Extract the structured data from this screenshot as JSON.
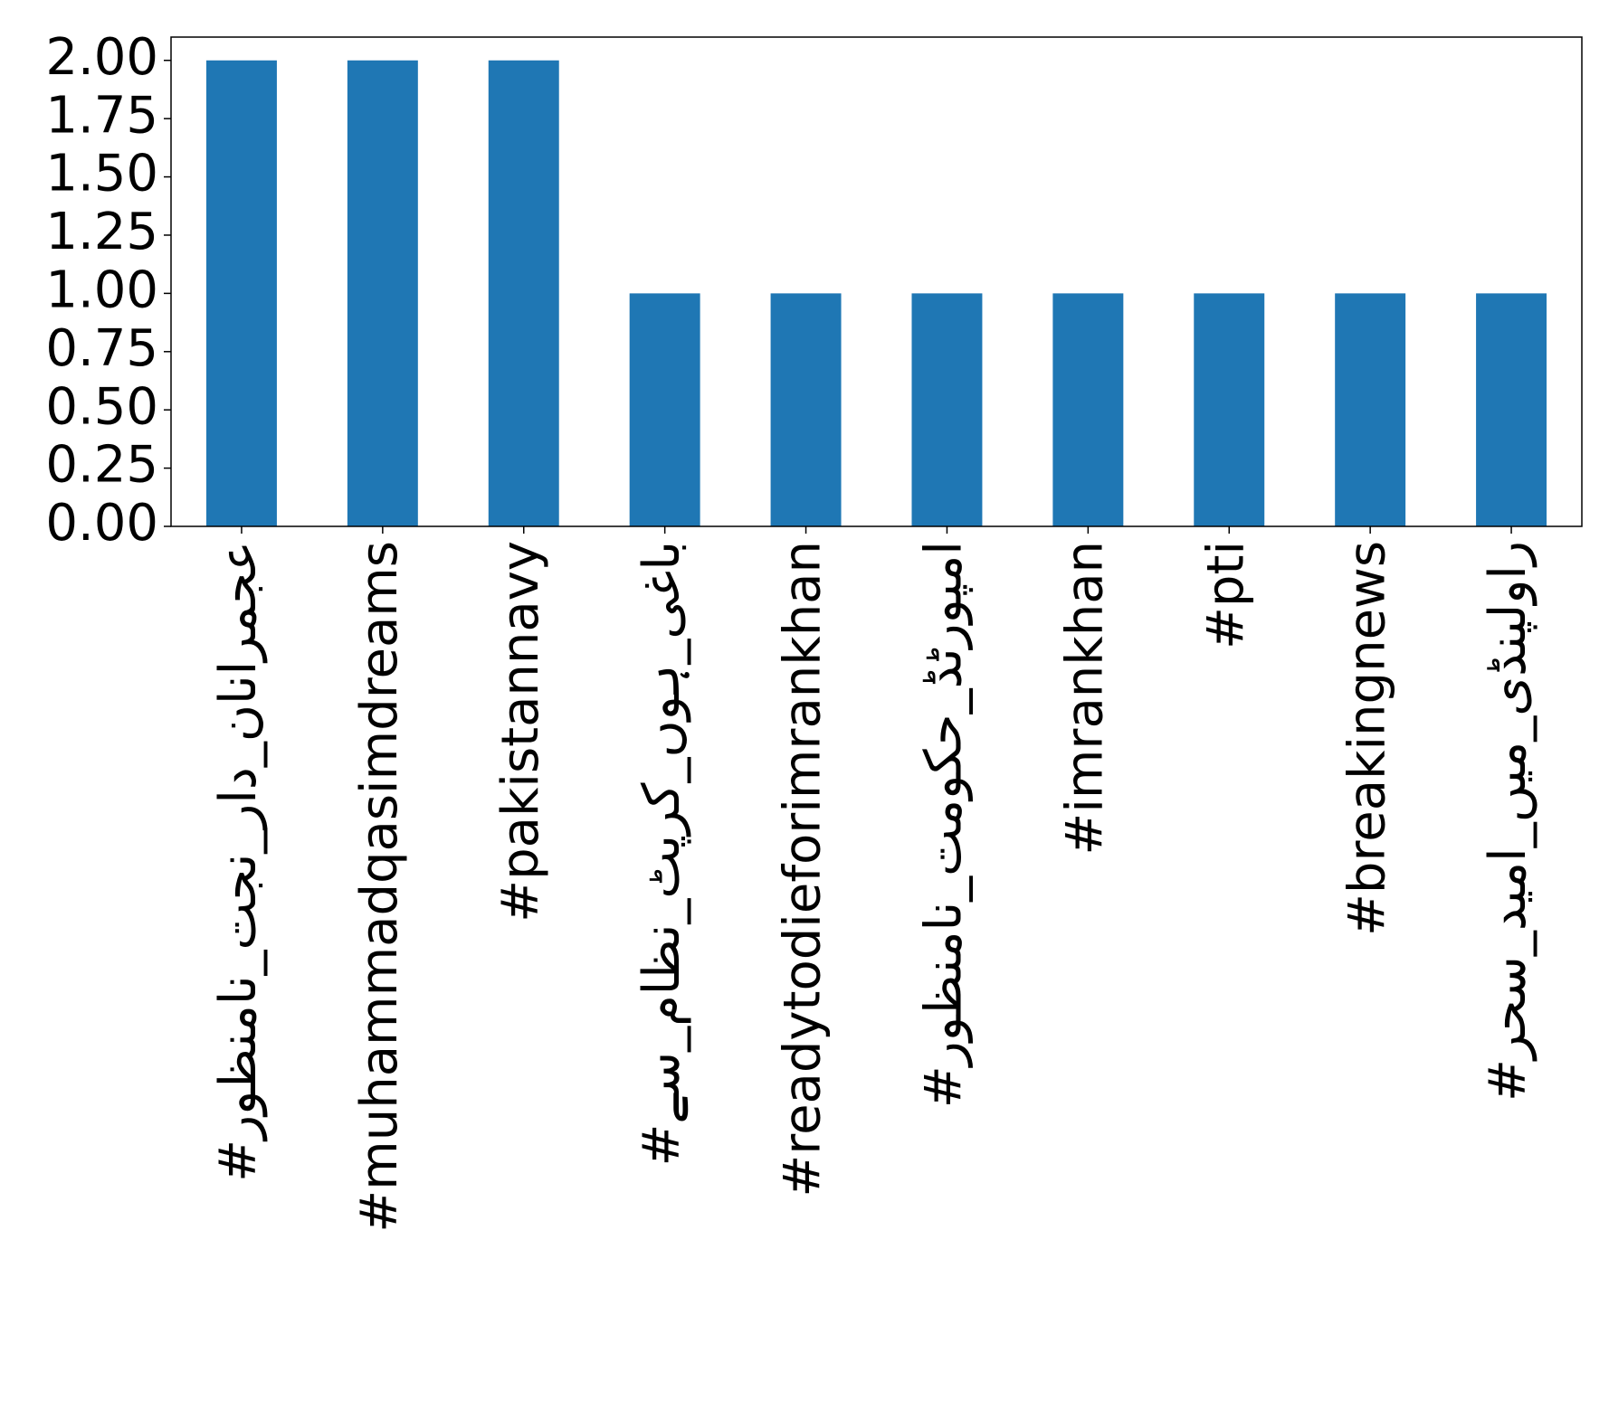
{
  "chart_data": {
    "type": "bar",
    "categories": [
      "#عجمرانان_دار_نجت_نامنظور",
      "#muhammadqasimdreams",
      "#pakistannavy",
      "#باغی_ہوں_کرپٹ_نظام_سے",
      "#readytodieforimrankhan",
      "#امپورٹڈ_حکومت_نامنظور",
      "#imrankhan",
      "#pti",
      "#breakingnews",
      "#راولپنڈی_میں_امید_سحر"
    ],
    "values": [
      2,
      2,
      2,
      1,
      1,
      1,
      1,
      1,
      1,
      1
    ],
    "color": "#1f77b4",
    "ylim": [
      0,
      2.1
    ],
    "yticks": [
      {
        "value": 0,
        "label": "0.00"
      },
      {
        "value": 0.25,
        "label": "0.25"
      },
      {
        "value": 0.5,
        "label": "0.50"
      },
      {
        "value": 0.75,
        "label": "0.75"
      },
      {
        "value": 1,
        "label": "1.00"
      },
      {
        "value": 1.25,
        "label": "1.25"
      },
      {
        "value": 1.5,
        "label": "1.50"
      },
      {
        "value": 1.75,
        "label": "1.75"
      },
      {
        "value": 2,
        "label": "2.00"
      }
    ],
    "grid": false
  }
}
